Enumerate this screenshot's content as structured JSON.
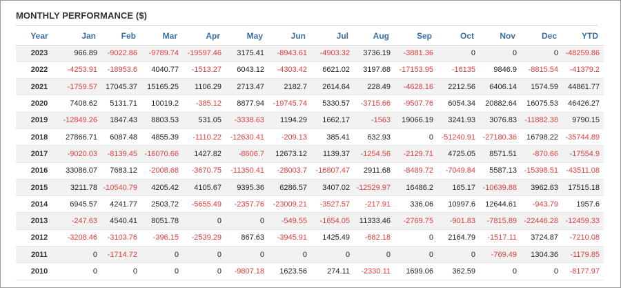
{
  "title": "MONTHLY PERFORMANCE ($)",
  "colors": {
    "header": "#3a6ea5",
    "negative": "#e03c3c",
    "positive": "#222222",
    "stripe": "#f2f2f2"
  },
  "columns": [
    "Year",
    "Jan",
    "Feb",
    "Mar",
    "Apr",
    "May",
    "Jun",
    "Jul",
    "Aug",
    "Sep",
    "Oct",
    "Nov",
    "Dec",
    "YTD"
  ],
  "rows": [
    [
      "2023",
      "966.89",
      "-9022.86",
      "-9789.74",
      "-19597.46",
      "3175.41",
      "-8943.61",
      "-4903.32",
      "3736.19",
      "-3881.36",
      "0",
      "0",
      "0",
      "-48259.86"
    ],
    [
      "2022",
      "-4253.91",
      "-18953.6",
      "4040.77",
      "-1513.27",
      "6043.12",
      "-4303.42",
      "6621.02",
      "3197.68",
      "-17153.95",
      "-16135",
      "9846.9",
      "-8815.54",
      "-41379.2"
    ],
    [
      "2021",
      "-1759.57",
      "17045.37",
      "15165.25",
      "1106.29",
      "2713.47",
      "2182.7",
      "2614.64",
      "228.49",
      "-4628.16",
      "2212.56",
      "6406.14",
      "1574.59",
      "44861.77"
    ],
    [
      "2020",
      "7408.62",
      "5131.71",
      "10019.2",
      "-385.12",
      "8877.94",
      "-19745.74",
      "5330.57",
      "-3715.66",
      "-9507.76",
      "6054.34",
      "20882.64",
      "16075.53",
      "46426.27"
    ],
    [
      "2019",
      "-12849.26",
      "1847.43",
      "8803.53",
      "531.05",
      "-3338.63",
      "1194.29",
      "1662.17",
      "-1563",
      "19066.19",
      "3241.93",
      "3076.83",
      "-11882.38",
      "9790.15"
    ],
    [
      "2018",
      "27866.71",
      "6087.48",
      "4855.39",
      "-1110.22",
      "-12630.41",
      "-209.13",
      "385.41",
      "632.93",
      "0",
      "-51240.91",
      "-27180.36",
      "16798.22",
      "-35744.89"
    ],
    [
      "2017",
      "-9020.03",
      "-8139.45",
      "-16070.66",
      "1427.82",
      "-8606.7",
      "12673.12",
      "1139.37",
      "-1254.56",
      "-2129.71",
      "4725.05",
      "8571.51",
      "-870.66",
      "-17554.9"
    ],
    [
      "2016",
      "33086.07",
      "7683.12",
      "-2008.68",
      "-3670.75",
      "-11350.41",
      "-28003.7",
      "-16807.47",
      "2911.68",
      "-8489.72",
      "-7049.84",
      "5587.13",
      "-15398.51",
      "-43511.08"
    ],
    [
      "2015",
      "3211.78",
      "-10540.79",
      "4205.42",
      "4105.67",
      "9395.36",
      "6286.57",
      "3407.02",
      "-12529.97",
      "16486.2",
      "165.17",
      "-10639.88",
      "3962.63",
      "17515.18"
    ],
    [
      "2014",
      "6945.57",
      "4241.77",
      "2503.72",
      "-5655.49",
      "-2357.76",
      "-23009.21",
      "-3527.57",
      "-217.91",
      "336.06",
      "10997.6",
      "12644.61",
      "-943.79",
      "1957.6"
    ],
    [
      "2013",
      "-247.63",
      "4540.41",
      "8051.78",
      "0",
      "0",
      "-549.55",
      "-1654.05",
      "11333.46",
      "-2769.75",
      "-901.83",
      "-7815.89",
      "-22446.28",
      "-12459.33"
    ],
    [
      "2012",
      "-3208.46",
      "-3103.76",
      "-396.15",
      "-2539.29",
      "867.63",
      "-3945.91",
      "1425.49",
      "-682.18",
      "0",
      "2164.79",
      "-1517.11",
      "3724.87",
      "-7210.08"
    ],
    [
      "2011",
      "0",
      "-1714.72",
      "0",
      "0",
      "0",
      "0",
      "0",
      "0",
      "0",
      "0",
      "-769.49",
      "1304.36",
      "-1179.85"
    ],
    [
      "2010",
      "0",
      "0",
      "0",
      "0",
      "-9807.18",
      "1623.56",
      "274.11",
      "-2330.11",
      "1699.06",
      "362.59",
      "0",
      "0",
      "-8177.97"
    ]
  ]
}
